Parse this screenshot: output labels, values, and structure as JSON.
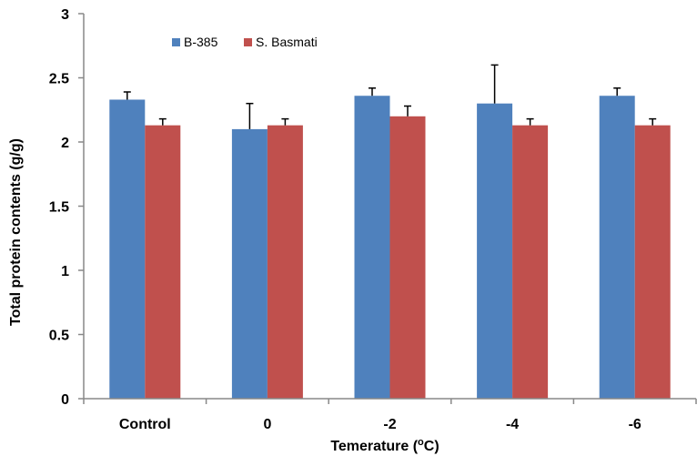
{
  "chart_data": {
    "type": "bar",
    "categories": [
      "Control",
      "0",
      "-2",
      "-4",
      "-6"
    ],
    "series": [
      {
        "name": "B-385",
        "color": "#4f81bd",
        "values": [
          2.33,
          2.1,
          2.36,
          2.3,
          2.36
        ],
        "errors": [
          0.06,
          0.2,
          0.06,
          0.3,
          0.06
        ]
      },
      {
        "name": "S. Basmati",
        "color": "#c0504d",
        "values": [
          2.13,
          2.13,
          2.2,
          2.13,
          2.13
        ],
        "errors": [
          0.05,
          0.05,
          0.08,
          0.05,
          0.05
        ]
      }
    ],
    "xlabel_parts": {
      "pre": "Temerature (",
      "sup": "o",
      "post": "C)"
    },
    "ylabel": "Total protein contents (g/g)",
    "ylim": [
      0,
      3
    ],
    "yticks": [
      "0",
      "0.5",
      "1",
      "1.5",
      "2",
      "2.5",
      "3"
    ],
    "grid": false,
    "legend_position": "top-left"
  }
}
